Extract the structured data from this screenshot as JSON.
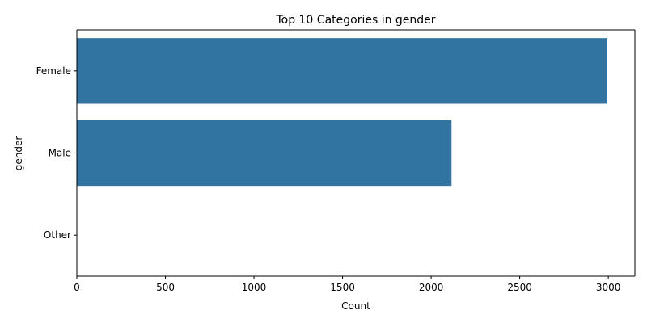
{
  "chart_data": {
    "type": "bar",
    "orientation": "horizontal",
    "title": "Top 10 Categories in gender",
    "xlabel": "Count",
    "ylabel": "gender",
    "categories": [
      "Female",
      "Male",
      "Other"
    ],
    "values": [
      2994,
      2115,
      1
    ],
    "xlim": [
      0,
      3150
    ],
    "xticks": [
      0,
      500,
      1000,
      1500,
      2000,
      2500,
      3000
    ],
    "bar_color": "#3274a1",
    "grid": false,
    "legend": false
  }
}
